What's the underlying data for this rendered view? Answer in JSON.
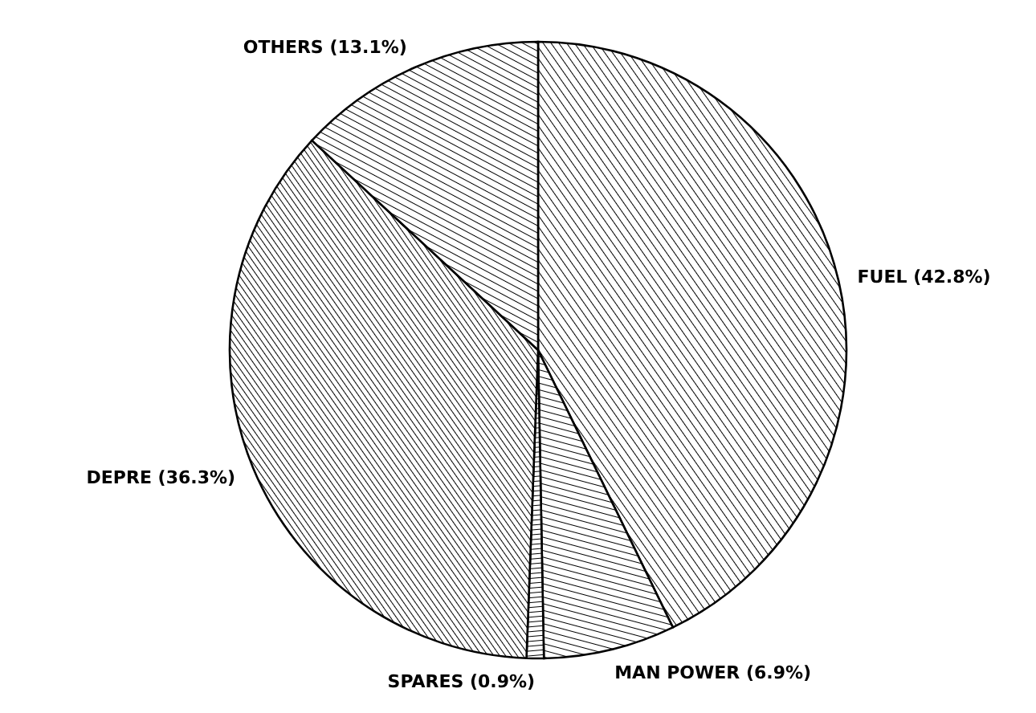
{
  "chart_data": {
    "type": "pie",
    "categories": [
      "FUEL (42.8%)",
      "MAN POWER (6.9%)",
      "SPARES (0.9%)",
      "DEPRE (36.3%)",
      "OTHERS (13.1%)"
    ],
    "values": [
      42.8,
      6.9,
      0.9,
      36.3,
      13.1
    ],
    "colors": [
      "#000000",
      "#000000",
      "#000000",
      "#000000",
      "#000000"
    ]
  }
}
